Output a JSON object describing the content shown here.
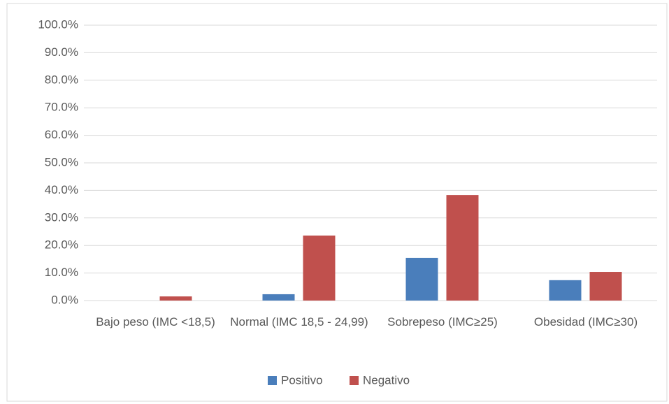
{
  "chart_data": {
    "type": "bar",
    "categories": [
      "Bajo peso (IMC <18,5)",
      "Normal (IMC 18,5 - 24,99)",
      "Sobrepeso (IMC≥25)",
      "Obesidad (IMC≥30)"
    ],
    "series": [
      {
        "name": "Positivo",
        "color": "#4a7ebb",
        "values": [
          0,
          2.3,
          15.5,
          7.4
        ]
      },
      {
        "name": "Negativo",
        "color": "#c0504d",
        "values": [
          1.5,
          23.6,
          38.3,
          10.4
        ]
      }
    ],
    "ylim": [
      0,
      100
    ],
    "yticks": [
      {
        "value": 0,
        "label": "0.0%"
      },
      {
        "value": 10,
        "label": "10.0%"
      },
      {
        "value": 20,
        "label": "20.0%"
      },
      {
        "value": 30,
        "label": "30.0%"
      },
      {
        "value": 40,
        "label": "40.0%"
      },
      {
        "value": 50,
        "label": "50.0%"
      },
      {
        "value": 60,
        "label": "60.0%"
      },
      {
        "value": 70,
        "label": "70.0%"
      },
      {
        "value": 80,
        "label": "80.0%"
      },
      {
        "value": 90,
        "label": "90.0%"
      },
      {
        "value": 100,
        "label": "100.0%"
      }
    ],
    "grid": true,
    "legend": "bottom"
  }
}
